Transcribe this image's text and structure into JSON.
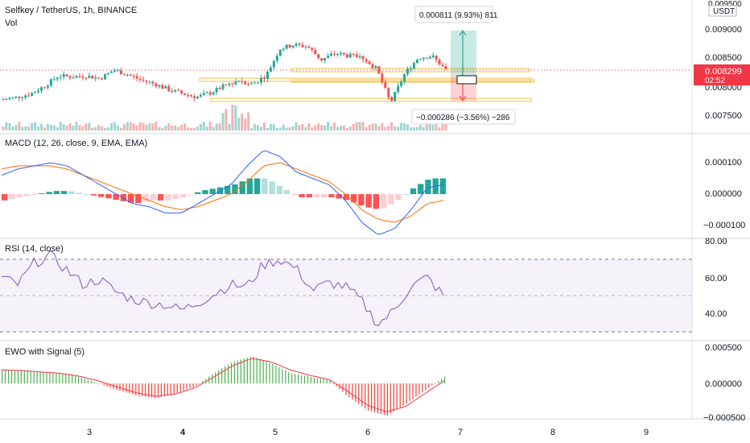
{
  "header": {
    "symbol_title": "Selfkey / TetherUS, 1h, BINANCE",
    "volume_label": "Vol"
  },
  "price_axis": {
    "currency": "USDT",
    "ticks": [
      "0.009500",
      "0.009000",
      "0.008500",
      "0.008000",
      "0.007500"
    ],
    "last_price": "0.008299",
    "countdown": "02:52",
    "last_price_color": "#f23645"
  },
  "position_tool": {
    "target_label": "0.000811 (9.93%) 811",
    "stop_label": "−0.000286 (−3.56%) −286",
    "profit_color": "#089981",
    "loss_color": "#f23645"
  },
  "panes": {
    "macd": {
      "title": "MACD (12, 26, close, 9, EMA, EMA)",
      "ticks": [
        "0.000100",
        "0.000000",
        "−0.000100"
      ]
    },
    "rsi": {
      "title": "RSI (14, close)",
      "ticks": [
        "80.00",
        "60.00",
        "40.00"
      ]
    },
    "ewo": {
      "title": "EWO with Signal (5)",
      "ticks": [
        "0.000500",
        "0.000000",
        "−0.000500"
      ]
    }
  },
  "time_axis": {
    "ticks": [
      "3",
      "4",
      "5",
      "6",
      "7",
      "8",
      "9"
    ]
  },
  "colors": {
    "up": "#26a69a",
    "down": "#ef5350",
    "macd_line": "#2962ff",
    "signal_line": "#ff6d00",
    "rsi_line": "#7e57c2",
    "ewo_up": "#4caf50",
    "ewo_down": "#f44336"
  },
  "chart_data": [
    {
      "type": "candlestick",
      "title": "Selfkey / TetherUS, 1h, BINANCE",
      "x_ticks": [
        "3",
        "4",
        "5",
        "6",
        "7",
        "8",
        "9"
      ],
      "ylim": [
        0.0073,
        0.0095
      ],
      "y_ticks": [
        0.0075,
        0.008,
        0.0085,
        0.009,
        0.0095
      ],
      "last_price": 0.008299,
      "close_path": [
        0.00778,
        0.00782,
        0.00788,
        0.00802,
        0.0082,
        0.00818,
        0.0082,
        0.00815,
        0.0083,
        0.00822,
        0.00812,
        0.00805,
        0.00795,
        0.00788,
        0.00782,
        0.0079,
        0.00802,
        0.00812,
        0.00805,
        0.0082,
        0.00868,
        0.00875,
        0.00872,
        0.00848,
        0.0086,
        0.00855,
        0.00852,
        0.00832,
        0.00772,
        0.00822,
        0.00852,
        0.00855,
        0.0083
      ],
      "horizontal_levels": [
        0.00835,
        0.00813,
        0.00783
      ]
    },
    {
      "type": "line",
      "title": "MACD (12, 26, close, 9, EMA, EMA)",
      "ylim": [
        -0.00016,
        0.00018
      ],
      "y_ticks": [
        0.0001,
        0.0,
        -0.0001
      ],
      "macd": [
        6e-05,
        8e-05,
        9e-05,
        0.0001,
        9e-05,
        6e-05,
        3e-05,
        0.0,
        -3e-05,
        -4e-05,
        -6e-05,
        -6e-05,
        -3e-05,
        0.0,
        3e-05,
        9e-05,
        0.00014,
        0.00012,
        7e-05,
        5e-05,
        3e-05,
        -2e-05,
        -9e-05,
        -0.00013,
        -0.00011,
        -5e-05,
        2e-05,
        3e-05
      ],
      "signal": [
        8e-05,
        9e-05,
        9e-05,
        9e-05,
        8e-05,
        6e-05,
        4e-05,
        2e-05,
        -0.0,
        -2e-05,
        -4e-05,
        -5e-05,
        -4e-05,
        -2e-05,
        0.0,
        4e-05,
        9e-05,
        0.0001,
        8e-05,
        6e-05,
        4e-05,
        0.0,
        -5e-05,
        -8e-05,
        -9e-05,
        -7e-05,
        -3e-05,
        -2e-05
      ]
    },
    {
      "type": "line",
      "title": "RSI (14, close)",
      "ylim": [
        30,
        85
      ],
      "y_ticks": [
        80,
        60,
        40
      ],
      "bands": [
        70,
        50,
        30
      ],
      "values": [
        60,
        56,
        68,
        72,
        64,
        56,
        59,
        52,
        48,
        46,
        45,
        42,
        46,
        51,
        56,
        55,
        67,
        70,
        65,
        53,
        57,
        55,
        47,
        34,
        42,
        55,
        60,
        50
      ]
    },
    {
      "type": "bar",
      "title": "EWO with Signal (5)",
      "ylim": [
        -0.00056,
        0.00056
      ],
      "y_ticks": [
        0.0005,
        0.0,
        -0.0005
      ],
      "values": [
        0.0002,
        0.0002,
        0.00017,
        0.00015,
        0.0001,
        0.0,
        -0.0001,
        -0.00018,
        -0.00022,
        -0.00015,
        -5e-05,
        0.00015,
        0.00032,
        0.0004,
        0.0003,
        0.00015,
        0.0001,
        5e-05,
        -0.0002,
        -0.0004,
        -0.00048,
        -0.0003,
        -0.0001,
        0.0001
      ],
      "signal": [
        0.0002,
        0.00019,
        0.00017,
        0.00015,
        0.00011,
        4e-05,
        -5e-05,
        -0.00014,
        -0.00019,
        -0.00016,
        -7e-05,
        9e-05,
        0.00026,
        0.00037,
        0.00032,
        0.0002,
        0.00012,
        6e-05,
        -0.00012,
        -0.00032,
        -0.00042,
        -0.00034,
        -0.00015,
        4e-05
      ]
    }
  ]
}
